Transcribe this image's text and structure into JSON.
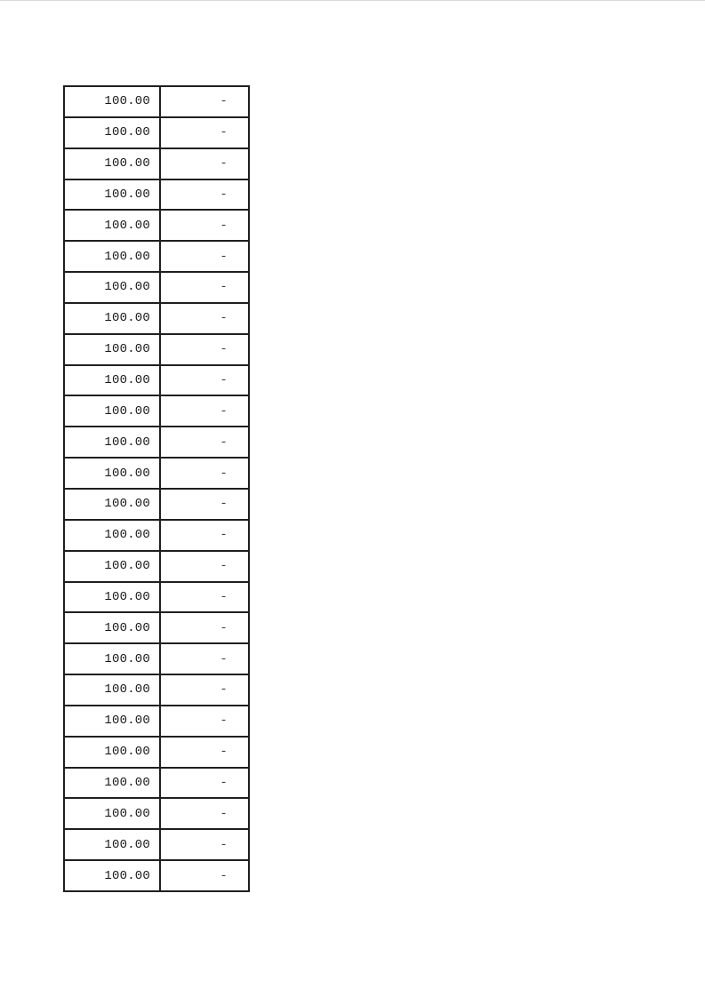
{
  "page": {
    "background": "#ffffff",
    "top_edge_line_color": "#d9d9d9"
  },
  "table": {
    "border_color": "#1f1f1f",
    "text_color": "#1a1a1a",
    "row_count": 26,
    "columns": [
      {
        "name": "amount",
        "align": "right"
      },
      {
        "name": "value",
        "align": "right"
      }
    ],
    "rows": [
      {
        "amount": "100.00",
        "value": "-"
      },
      {
        "amount": "100.00",
        "value": "-"
      },
      {
        "amount": "100.00",
        "value": "-"
      },
      {
        "amount": "100.00",
        "value": "-"
      },
      {
        "amount": "100.00",
        "value": "-"
      },
      {
        "amount": "100.00",
        "value": "-"
      },
      {
        "amount": "100.00",
        "value": "-"
      },
      {
        "amount": "100.00",
        "value": "-"
      },
      {
        "amount": "100.00",
        "value": "-"
      },
      {
        "amount": "100.00",
        "value": "-"
      },
      {
        "amount": "100.00",
        "value": "-"
      },
      {
        "amount": "100.00",
        "value": "-"
      },
      {
        "amount": "100.00",
        "value": "-"
      },
      {
        "amount": "100.00",
        "value": "-"
      },
      {
        "amount": "100.00",
        "value": "-"
      },
      {
        "amount": "100.00",
        "value": "-"
      },
      {
        "amount": "100.00",
        "value": "-"
      },
      {
        "amount": "100.00",
        "value": "-"
      },
      {
        "amount": "100.00",
        "value": "-"
      },
      {
        "amount": "100.00",
        "value": "-"
      },
      {
        "amount": "100.00",
        "value": "-"
      },
      {
        "amount": "100.00",
        "value": "-"
      },
      {
        "amount": "100.00",
        "value": "-"
      },
      {
        "amount": "100.00",
        "value": "-"
      },
      {
        "amount": "100.00",
        "value": "-"
      },
      {
        "amount": "100.00",
        "value": "-"
      }
    ]
  }
}
